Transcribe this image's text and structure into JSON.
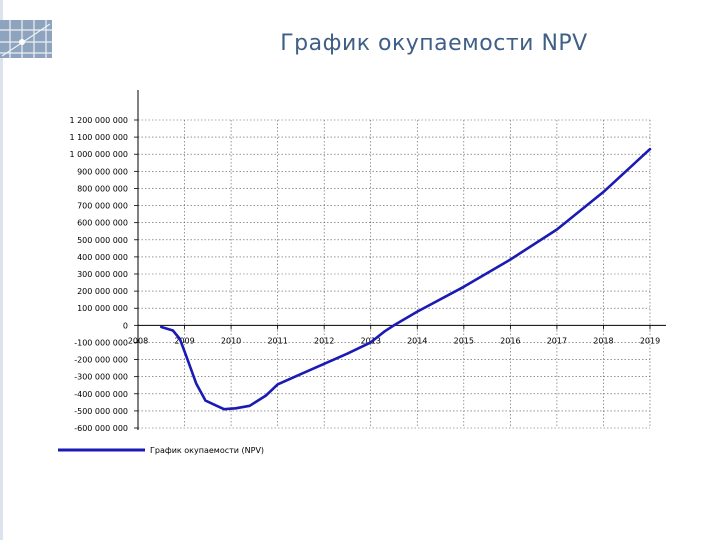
{
  "page": {
    "title": "График окупаемости NPV"
  },
  "chart_data": {
    "type": "line",
    "title": "",
    "xlabel": "",
    "ylabel": "",
    "grid": true,
    "legend_position": "bottom-left",
    "xlim": [
      2008,
      2019
    ],
    "ylim": [
      -600000000,
      1200000000
    ],
    "x_ticks": [
      "2008",
      "2009",
      "2010",
      "2011",
      "2012",
      "2013",
      "2014",
      "2015",
      "2016",
      "2017",
      "2018",
      "2019"
    ],
    "y_ticks": [
      {
        "v": 1200000000,
        "label": "1 200 000 000"
      },
      {
        "v": 1100000000,
        "label": "1 100 000 000"
      },
      {
        "v": 1000000000,
        "label": "1 000 000 000"
      },
      {
        "v": 900000000,
        "label": "900 000 000"
      },
      {
        "v": 800000000,
        "label": "800 000 000"
      },
      {
        "v": 700000000,
        "label": "700 000 000"
      },
      {
        "v": 600000000,
        "label": "600 000 000"
      },
      {
        "v": 500000000,
        "label": "500 000 000"
      },
      {
        "v": 400000000,
        "label": "400 000 000"
      },
      {
        "v": 300000000,
        "label": "300 000 000"
      },
      {
        "v": 200000000,
        "label": "200 000 000"
      },
      {
        "v": 100000000,
        "label": "100 000 000"
      },
      {
        "v": 0,
        "label": "0"
      },
      {
        "v": -100000000,
        "label": "-100 000 000"
      },
      {
        "v": -200000000,
        "label": "-200 000 000"
      },
      {
        "v": -300000000,
        "label": "-300 000 000"
      },
      {
        "v": -400000000,
        "label": "-400 000 000"
      },
      {
        "v": -500000000,
        "label": "-500 000 000"
      },
      {
        "v": -600000000,
        "label": "-600 000 000"
      }
    ],
    "series": [
      {
        "name": "График окупаемости (NPV)",
        "color": "#1a1ab4",
        "points": [
          [
            2008.5,
            -10000000
          ],
          [
            2008.75,
            -30000000
          ],
          [
            2008.9,
            -80000000
          ],
          [
            2009.05,
            -190000000
          ],
          [
            2009.25,
            -340000000
          ],
          [
            2009.45,
            -440000000
          ],
          [
            2009.65,
            -465000000
          ],
          [
            2009.85,
            -490000000
          ],
          [
            2010.1,
            -485000000
          ],
          [
            2010.4,
            -470000000
          ],
          [
            2010.75,
            -410000000
          ],
          [
            2011.0,
            -345000000
          ],
          [
            2011.5,
            -285000000
          ],
          [
            2012.0,
            -225000000
          ],
          [
            2012.5,
            -165000000
          ],
          [
            2013.0,
            -100000000
          ],
          [
            2013.3,
            -35000000
          ],
          [
            2013.5,
            0
          ],
          [
            2014.0,
            80000000
          ],
          [
            2015.0,
            225000000
          ],
          [
            2016.0,
            385000000
          ],
          [
            2017.0,
            560000000
          ],
          [
            2018.0,
            780000000
          ],
          [
            2019.0,
            1030000000
          ]
        ]
      }
    ]
  }
}
